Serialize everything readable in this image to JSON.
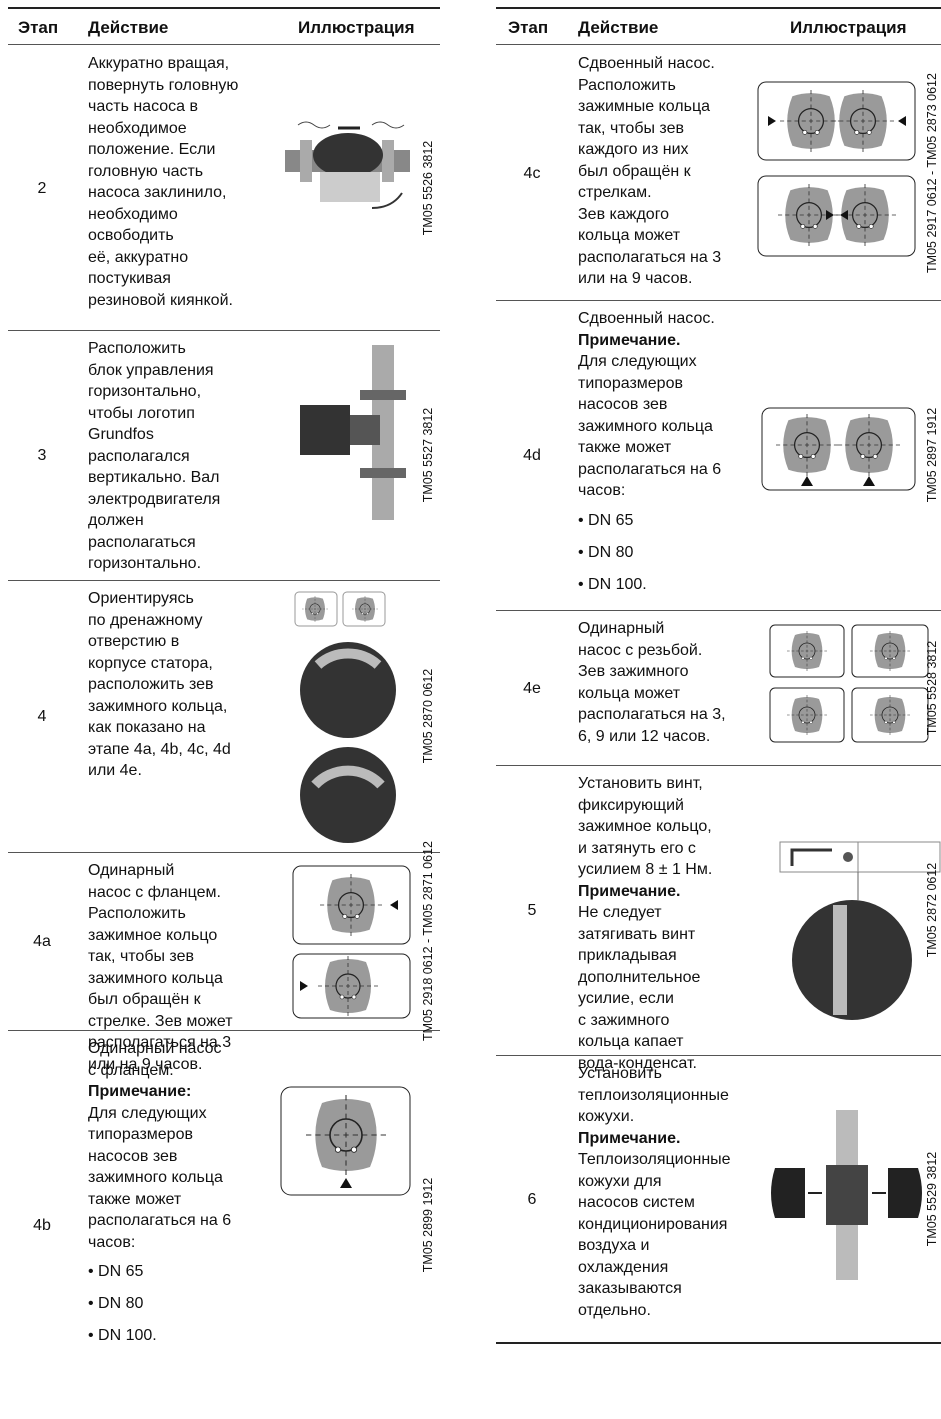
{
  "tables": [
    {
      "header": [
        "Этап",
        "Действие",
        "Иллюстрация"
      ],
      "rows": [
        {
          "step": "2",
          "action": [
            "Аккуратно вращая,",
            "повернуть головную",
            "часть насоса в",
            "необходимое",
            "положение. Если",
            "головную часть",
            "насоса заклинило,",
            "необходимо",
            "освободить",
            "её, аккуратно",
            "постукивая",
            "резиновой киянкой."
          ],
          "code": "TM05 5526 3812"
        },
        {
          "step": "3",
          "action": [
            "Расположить",
            "блок управления",
            "горизонтально,",
            "чтобы логотип",
            "Grundfos",
            "располагался",
            "вертикально. Вал",
            "электродвигателя",
            "должен",
            "располагаться",
            "горизонтально."
          ],
          "code": "TM05 5527 3812"
        },
        {
          "step": "4",
          "action": [
            "Ориентируясь",
            "по дренажному",
            "отверстию в",
            "корпусе статора,",
            "расположить зев",
            "зажимного кольца,",
            "как показано на",
            "этапе 4a, 4b, 4c, 4d",
            "или 4e."
          ],
          "code": "TM05 2870 0612"
        },
        {
          "step": "4a",
          "action": [
            "Одинарный",
            "насос с фланцем.",
            "Расположить",
            "зажимное кольцо",
            "так, чтобы зев",
            "зажимного кольца",
            "был обращён к",
            "стрелке. Зев может",
            "располагаться на 3",
            "или на 9 часов."
          ],
          "code": "TM05 2918 0612 - TM05 2871 0612"
        },
        {
          "step": "4b",
          "action": [
            "Одинарный насос",
            "с фланцем."
          ],
          "note_heading": "Примечание:",
          "note": [
            "Для следующих",
            "типоразмеров",
            "насосов зев",
            "зажимного кольца",
            "также может",
            "располагаться на 6",
            "часов:"
          ],
          "list": [
            "• DN 65",
            "• DN 80",
            "• DN 100."
          ],
          "code": "TM05 2899 1912"
        }
      ]
    },
    {
      "header": [
        "Этап",
        "Действие",
        "Иллюстрация"
      ],
      "rows": [
        {
          "step": "4c",
          "action": [
            "Сдвоенный насос.",
            "Расположить",
            "зажимные кольца",
            "так, чтобы зев",
            "каждого из них",
            "был обращён к",
            "стрелкам.",
            "Зев каждого",
            "кольца может",
            "располагаться на 3",
            "или на 9 часов."
          ],
          "code": "TM05 2917 0612 - TM05 2873 0612"
        },
        {
          "step": "4d",
          "action": [
            "Сдвоенный насос."
          ],
          "note_heading": "Примечание.",
          "note": [
            "Для следующих",
            "типоразмеров",
            "насосов зев",
            "зажимного кольца",
            "также может",
            "располагаться на 6",
            "часов:"
          ],
          "list": [
            "• DN 65",
            "• DN 80",
            "• DN 100."
          ],
          "code": "TM05 2897 1912"
        },
        {
          "step": "4e",
          "action": [
            "Одинарный",
            "насос с резьбой.",
            "Зев зажимного",
            "кольца может",
            "располагаться на 3,",
            "6, 9 или 12 часов."
          ],
          "code": "TM05 5528 3812"
        },
        {
          "step": "5",
          "action": [
            "Установить винт,",
            "фиксирующий",
            "зажимное кольцо,",
            "и затянуть его с",
            "усилием 8 ± 1 Нм."
          ],
          "note_heading": "Примечание.",
          "note": [
            "Не следует",
            "затягивать винт",
            "прикладывая",
            "дополнительное",
            "усилие, если",
            "с зажимного",
            "кольца капает",
            "вода-конденсат."
          ],
          "code": "TM05 2872 0612"
        },
        {
          "step": "6",
          "action": [
            "Установить",
            "теплоизоляционные",
            "кожухи."
          ],
          "note_heading": "Примечание.",
          "note": [
            "Теплоизоляционные",
            "кожухи для",
            "насосов систем",
            "кондиционирования",
            "воздуха и",
            "охлаждения",
            "заказываются",
            "отдельно."
          ],
          "code": "TM05 5529 3812"
        }
      ]
    }
  ]
}
